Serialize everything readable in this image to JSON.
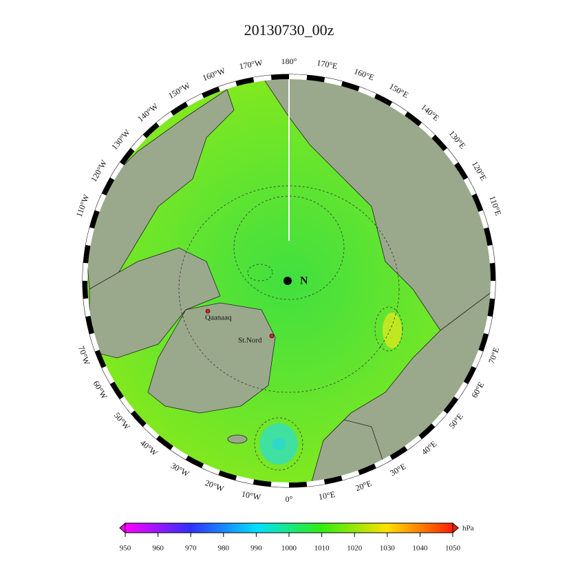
{
  "title": "20130730_00z",
  "longitude_labels": [
    {
      "value": 0,
      "label": "0°"
    },
    {
      "value": 10,
      "label": "10°E"
    },
    {
      "value": 20,
      "label": "20°E"
    },
    {
      "value": 30,
      "label": "30°E"
    },
    {
      "value": 40,
      "label": "40°E"
    },
    {
      "value": 50,
      "label": "50°E"
    },
    {
      "value": 60,
      "label": "60°E"
    },
    {
      "value": 70,
      "label": "70°E"
    },
    {
      "value": 110,
      "label": "110°E"
    },
    {
      "value": 120,
      "label": "120°E"
    },
    {
      "value": 130,
      "label": "130°E"
    },
    {
      "value": 140,
      "label": "140°E"
    },
    {
      "value": 150,
      "label": "150°E"
    },
    {
      "value": 160,
      "label": "160°E"
    },
    {
      "value": 170,
      "label": "170°E"
    },
    {
      "value": 180,
      "label": "180°"
    },
    {
      "value": -170,
      "label": "170°W"
    },
    {
      "value": -160,
      "label": "160°W"
    },
    {
      "value": -150,
      "label": "150°W"
    },
    {
      "value": -140,
      "label": "140°W"
    },
    {
      "value": -130,
      "label": "130°W"
    },
    {
      "value": -120,
      "label": "120°W"
    },
    {
      "value": -110,
      "label": "110°W"
    },
    {
      "value": -70,
      "label": "70°W"
    },
    {
      "value": -60,
      "label": "60°W"
    },
    {
      "value": -50,
      "label": "50°W"
    },
    {
      "value": -40,
      "label": "40°W"
    },
    {
      "value": -30,
      "label": "30°W"
    },
    {
      "value": -20,
      "label": "20°W"
    },
    {
      "value": -10,
      "label": "10°W"
    }
  ],
  "places": {
    "pole": "N",
    "qaanaaq": "Qaanaaq",
    "st_nord": "St.Nord"
  },
  "colorbar": {
    "unit": "hPa",
    "ticks": [
      950,
      960,
      970,
      980,
      990,
      1000,
      1010,
      1020,
      1030,
      1040,
      1050
    ]
  }
}
